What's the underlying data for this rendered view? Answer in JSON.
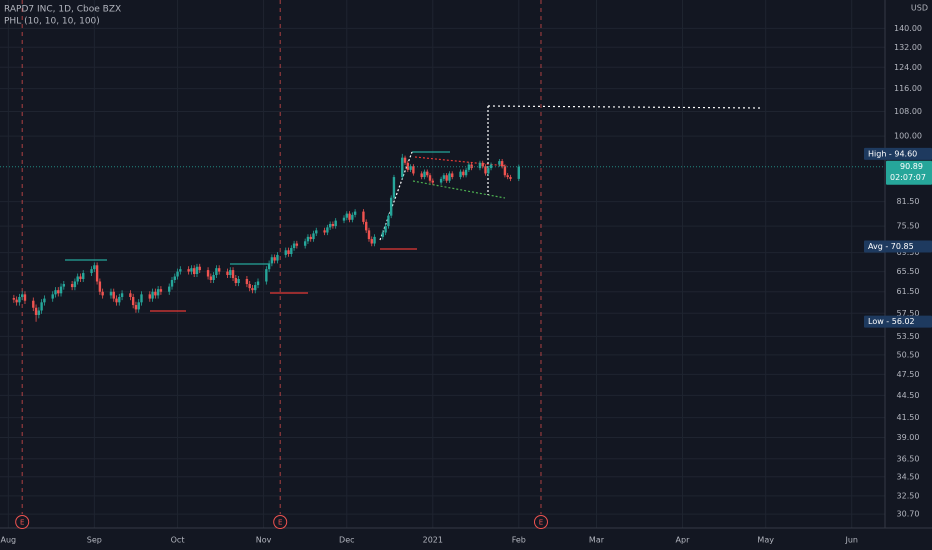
{
  "chart_data": {
    "type": "candlestick",
    "title": "RAPD7 INC, 1D, Cboe BZX",
    "indicator": "PHL (10, 10, 10, 100)",
    "currency": "USD",
    "log_scale": true,
    "grid": true,
    "up_color": "#26a69a",
    "down_color": "#ef5350",
    "xlim": [
      -3,
      316
    ],
    "ylim": [
      29.4,
      153
    ],
    "xticks": [
      {
        "value": 0,
        "label": "Aug"
      },
      {
        "value": 31,
        "label": "Sep"
      },
      {
        "value": 61,
        "label": "Oct"
      },
      {
        "value": 92,
        "label": "Nov"
      },
      {
        "value": 122,
        "label": "Dec"
      },
      {
        "value": 153,
        "label": "2021"
      },
      {
        "value": 184,
        "label": "Feb"
      },
      {
        "value": 212,
        "label": "Mar"
      },
      {
        "value": 243,
        "label": "Apr"
      },
      {
        "value": 273,
        "label": "May"
      },
      {
        "value": 304,
        "label": "Jun"
      }
    ],
    "yticks": [
      {
        "value": 30.7,
        "label": "30.70"
      },
      {
        "value": 32.5,
        "label": "32.50"
      },
      {
        "value": 34.5,
        "label": "34.50"
      },
      {
        "value": 36.5,
        "label": "36.50"
      },
      {
        "value": 39,
        "label": "39.00"
      },
      {
        "value": 41.5,
        "label": "41.50"
      },
      {
        "value": 44.5,
        "label": "44.50"
      },
      {
        "value": 47.5,
        "label": "47.50"
      },
      {
        "value": 50.5,
        "label": "50.50"
      },
      {
        "value": 53.5,
        "label": "53.50"
      },
      {
        "value": 57.5,
        "label": "57.50"
      },
      {
        "value": 61.5,
        "label": "61.50"
      },
      {
        "value": 65.5,
        "label": "65.50"
      },
      {
        "value": 69.5,
        "label": "69.50"
      },
      {
        "value": 75.5,
        "label": "75.50"
      },
      {
        "value": 81.5,
        "label": "81.50"
      },
      {
        "value": 100,
        "label": "100.00"
      },
      {
        "value": 108,
        "label": "108.00"
      },
      {
        "value": 116,
        "label": "116.00"
      },
      {
        "value": 124,
        "label": "124.00"
      },
      {
        "value": 132,
        "label": "132.00"
      },
      {
        "value": 140,
        "label": "140.00"
      }
    ],
    "x": [
      2,
      3,
      4,
      5,
      6,
      9,
      10,
      11,
      12,
      13,
      16,
      17,
      18,
      19,
      20,
      23,
      24,
      25,
      26,
      27,
      30,
      31,
      32,
      33,
      34,
      37,
      38,
      39,
      40,
      41,
      44,
      45,
      46,
      47,
      48,
      51,
      52,
      53,
      54,
      55,
      58,
      59,
      60,
      61,
      62,
      65,
      66,
      67,
      68,
      69,
      72,
      73,
      74,
      75,
      76,
      79,
      80,
      81,
      82,
      83,
      86,
      87,
      88,
      89,
      90,
      93,
      94,
      95,
      96,
      97,
      100,
      101,
      102,
      103,
      104,
      107,
      108,
      109,
      110,
      111,
      114,
      115,
      116,
      117,
      118,
      121,
      122,
      123,
      124,
      125,
      128,
      129,
      130,
      131,
      132,
      135,
      136,
      137,
      138,
      139,
      142,
      143,
      144,
      145,
      146,
      149,
      150,
      151,
      152,
      153,
      156,
      157,
      158,
      159,
      160,
      163,
      164,
      165,
      166,
      167,
      170,
      171,
      172,
      173,
      174,
      177,
      178,
      179,
      180,
      181,
      184
    ],
    "open": [
      60.3,
      60.0,
      59.5,
      60.5,
      61.0,
      59.8,
      58.5,
      57.2,
      58.0,
      59.5,
      60.2,
      61.0,
      61.8,
      61.2,
      62.5,
      63.0,
      62.4,
      63.5,
      64.5,
      64.0,
      65.2,
      66.0,
      66.8,
      63.5,
      61.5,
      60.8,
      61.5,
      60.2,
      59.5,
      60.5,
      61.2,
      60.5,
      59.0,
      58.2,
      59.5,
      61.0,
      60.2,
      61.5,
      60.8,
      62.0,
      61.5,
      62.5,
      63.8,
      64.5,
      65.5,
      66.0,
      65.5,
      66.2,
      65.0,
      66.5,
      65.8,
      64.5,
      63.8,
      64.8,
      66.2,
      65.5,
      64.8,
      65.8,
      64.2,
      63.2,
      64.0,
      63.0,
      62.2,
      61.8,
      62.8,
      63.5,
      66.0,
      67.2,
      68.5,
      67.8,
      69.0,
      70.0,
      69.2,
      70.5,
      71.5,
      71.0,
      72.0,
      73.0,
      72.5,
      73.8,
      74.5,
      74.0,
      75.2,
      76.0,
      75.5,
      76.8,
      77.5,
      78.5,
      77.0,
      78.2,
      79.0,
      76.5,
      74.5,
      72.5,
      71.5,
      73.0,
      74.0,
      75.5,
      78.0,
      82.5,
      88.0,
      93.5,
      92.0,
      90.0,
      91.0,
      89.0,
      88.0,
      89.5,
      88.5,
      87.0,
      86.5,
      87.5,
      88.5,
      87.0,
      89.0,
      88.0,
      89.5,
      88.5,
      90.0,
      91.5,
      90.5,
      92.0,
      91.0,
      89.0,
      90.5,
      91.5,
      92.5,
      91.0,
      88.5,
      88.0,
      87.5
    ],
    "high": [
      60.9,
      60.6,
      61.1,
      61.6,
      61.6,
      60.4,
      59.1,
      58.6,
      60.1,
      60.8,
      61.6,
      62.4,
      62.4,
      63.1,
      63.6,
      63.6,
      64.1,
      65.1,
      65.1,
      65.8,
      66.6,
      67.4,
      67.4,
      64.1,
      62.1,
      62.1,
      62.1,
      60.8,
      61.1,
      61.8,
      61.8,
      61.1,
      59.6,
      60.1,
      61.6,
      61.6,
      62.1,
      62.1,
      62.6,
      62.6,
      63.1,
      64.4,
      65.1,
      66.1,
      66.6,
      66.6,
      66.8,
      66.8,
      67.1,
      67.1,
      66.4,
      65.1,
      65.4,
      66.8,
      66.8,
      66.1,
      66.4,
      66.4,
      64.8,
      64.6,
      64.6,
      63.6,
      62.8,
      63.4,
      64.1,
      66.6,
      67.8,
      69.1,
      69.1,
      69.6,
      70.6,
      70.6,
      71.1,
      72.1,
      72.1,
      72.6,
      73.6,
      73.6,
      74.4,
      75.1,
      75.1,
      75.8,
      76.6,
      76.6,
      77.4,
      78.1,
      79.1,
      79.1,
      78.8,
      79.6,
      79.6,
      77.1,
      75.1,
      73.1,
      73.6,
      74.6,
      76.1,
      78.6,
      83.1,
      88.6,
      94.6,
      94.1,
      92.6,
      91.6,
      91.6,
      89.6,
      90.1,
      90.1,
      89.1,
      87.6,
      88.1,
      89.1,
      89.1,
      89.6,
      89.6,
      90.1,
      90.1,
      90.6,
      92.1,
      92.1,
      92.6,
      92.6,
      91.6,
      91.1,
      92.1,
      93.1,
      93.1,
      91.6,
      89.1,
      88.6,
      91.5
    ],
    "low": [
      59.4,
      58.9,
      58.9,
      59.9,
      59.2,
      57.9,
      56.0,
      56.6,
      57.4,
      58.9,
      59.6,
      60.4,
      60.6,
      60.6,
      61.9,
      61.8,
      61.8,
      62.9,
      63.4,
      63.4,
      64.6,
      65.4,
      62.9,
      60.9,
      60.2,
      60.2,
      59.6,
      58.9,
      58.9,
      59.9,
      59.9,
      58.4,
      57.6,
      57.6,
      58.9,
      59.6,
      59.6,
      60.2,
      60.2,
      60.9,
      60.9,
      61.9,
      63.2,
      63.9,
      64.9,
      64.9,
      64.9,
      64.4,
      64.4,
      65.2,
      63.9,
      63.2,
      63.2,
      64.2,
      64.9,
      64.2,
      64.2,
      63.6,
      62.6,
      62.6,
      62.4,
      61.6,
      61.2,
      61.2,
      62.2,
      62.9,
      65.4,
      66.6,
      67.2,
      67.2,
      68.4,
      68.6,
      68.6,
      69.9,
      70.4,
      70.4,
      71.4,
      71.9,
      71.9,
      73.2,
      73.4,
      73.4,
      74.6,
      74.9,
      74.9,
      76.2,
      76.9,
      76.4,
      76.4,
      77.6,
      75.9,
      73.9,
      71.9,
      70.9,
      70.9,
      72.4,
      73.4,
      74.9,
      77.4,
      81.9,
      87.4,
      91.4,
      89.4,
      89.4,
      88.4,
      87.4,
      87.4,
      87.9,
      86.4,
      85.9,
      85.9,
      86.9,
      86.4,
      86.4,
      87.4,
      87.4,
      87.9,
      87.9,
      89.4,
      89.9,
      89.9,
      90.4,
      88.4,
      88.4,
      89.9,
      90.9,
      90.4,
      87.9,
      87.4,
      86.9,
      86.9
    ],
    "close": [
      60.0,
      59.5,
      60.5,
      61.0,
      59.8,
      58.5,
      57.2,
      58.0,
      59.5,
      60.2,
      61.0,
      61.8,
      61.2,
      62.5,
      63.0,
      62.4,
      63.5,
      64.5,
      64.0,
      65.2,
      66.0,
      66.8,
      63.5,
      61.5,
      60.8,
      61.5,
      60.2,
      59.5,
      60.5,
      61.2,
      60.5,
      59.0,
      58.2,
      59.5,
      61.0,
      60.2,
      61.5,
      60.8,
      62.0,
      61.5,
      62.5,
      63.8,
      64.5,
      65.5,
      66.0,
      65.5,
      66.2,
      65.0,
      66.5,
      65.8,
      64.5,
      63.8,
      64.8,
      66.2,
      65.5,
      64.8,
      65.8,
      64.2,
      63.2,
      64.0,
      63.0,
      62.2,
      61.8,
      62.8,
      63.5,
      66.0,
      67.2,
      68.5,
      67.8,
      69.0,
      70.0,
      69.2,
      70.5,
      71.5,
      71.0,
      72.0,
      73.0,
      72.5,
      73.8,
      74.5,
      74.0,
      75.2,
      76.0,
      75.5,
      76.8,
      77.5,
      78.5,
      77.0,
      78.2,
      79.0,
      76.5,
      74.5,
      72.5,
      71.5,
      73.0,
      74.0,
      75.5,
      78.0,
      82.5,
      88.0,
      93.5,
      92.0,
      90.0,
      91.0,
      89.0,
      88.0,
      89.5,
      88.5,
      87.0,
      86.5,
      87.5,
      88.5,
      87.0,
      89.0,
      88.0,
      89.5,
      88.5,
      90.0,
      91.5,
      90.5,
      92.0,
      91.0,
      89.0,
      90.5,
      91.5,
      92.5,
      91.0,
      88.5,
      88.0,
      87.5,
      90.9
    ],
    "price_labels": [
      {
        "value": 94.6,
        "label": "High - 94.60",
        "color": "#1e3a5f"
      },
      {
        "value": 70.85,
        "label": "Avg - 70.85",
        "color": "#1e3a5f"
      },
      {
        "value": 56.02,
        "label": "Low - 56.02",
        "color": "#1e3a5f"
      }
    ],
    "last_price": {
      "value": 90.89,
      "label": "90.89",
      "countdown": "02:07:07",
      "color": "#26a69a"
    },
    "earnings": [
      {
        "x": 5,
        "label": "E"
      },
      {
        "x": 98,
        "label": "E"
      },
      {
        "x": 192,
        "label": "E"
      }
    ]
  }
}
